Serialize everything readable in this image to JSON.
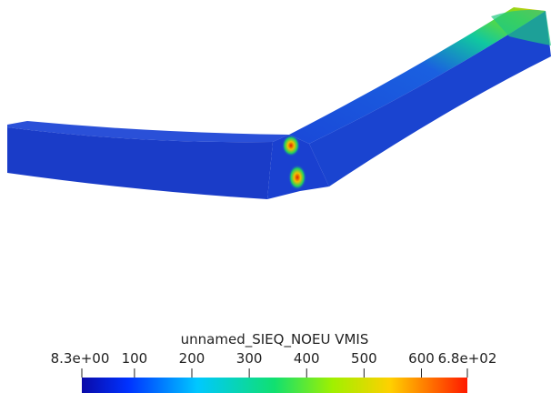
{
  "colorbar": {
    "title": "unnamed_SIEQ_NOEU VMIS",
    "range": [
      {
        "value": 8.3,
        "label": "8.3e+00"
      },
      {
        "value": 680,
        "label": "6.8e+02"
      }
    ],
    "ticks": [
      100,
      200,
      300,
      400,
      500,
      600
    ]
  }
}
